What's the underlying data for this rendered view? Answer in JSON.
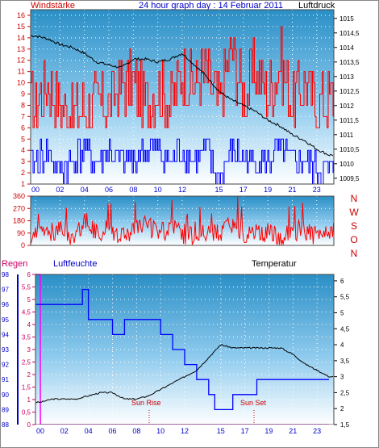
{
  "header": {
    "left_label": "Windstärke",
    "title": "24 hour graph day : 14 Februar 2011",
    "right_label": "Luftdruck"
  },
  "compass": [
    "N",
    "W",
    "S",
    "O",
    "N"
  ],
  "bottom_labels": {
    "rain": "Regen",
    "humidity": "Luftfeuchte",
    "temperature": "Temperatur",
    "sun_rise": "Sun Rise",
    "sun_set": "Sun Set"
  },
  "colors": {
    "wind": "#ff0000",
    "gust": "#0000ff",
    "pressure": "#000000",
    "direction": "#ff0000",
    "rain": "#ff00ff",
    "humidity": "#0000ff",
    "temperature": "#000000",
    "axis_left_top": "#cc0000",
    "axis_left_bottom": "#0000cc"
  },
  "chart_data": [
    {
      "type": "line",
      "name": "wind-pressure",
      "x_ticks": [
        "00",
        "02",
        "04",
        "06",
        "08",
        "10",
        "12",
        "15",
        "17",
        "19",
        "21",
        "23"
      ],
      "y_left": {
        "label": "Windstärke",
        "ticks": [
          "1",
          "2",
          "3",
          "4",
          "5",
          "6",
          "7",
          "8",
          "9",
          "10",
          "11",
          "12",
          "13",
          "14",
          "15",
          "16"
        ],
        "range": [
          1,
          16.5
        ]
      },
      "y_right": {
        "label": "Luftdruck",
        "ticks": [
          "1009,5",
          "1010",
          "1010,5",
          "1011",
          "1011,5",
          "1012",
          "1012,5",
          "1013",
          "1013,5",
          "1014",
          "1014,5",
          "1015"
        ],
        "range": [
          1009.3,
          1015.3
        ]
      },
      "series": [
        {
          "name": "Windstärke",
          "axis": "left",
          "x": [
            0,
            1,
            2,
            3,
            4,
            5,
            6,
            7,
            8,
            9,
            10,
            11,
            12,
            13,
            14,
            15,
            16,
            17,
            18,
            19,
            20,
            21,
            22,
            23,
            24
          ],
          "y": [
            8,
            10,
            8,
            7,
            8,
            8,
            8,
            10,
            10,
            8,
            10,
            8,
            11,
            10,
            11,
            8,
            13,
            9,
            11,
            9,
            12,
            8,
            10,
            8,
            9
          ]
        },
        {
          "name": "Böen",
          "axis": "left",
          "x": [
            0,
            1,
            2,
            3,
            4,
            5,
            6,
            7,
            8,
            9,
            10,
            11,
            12,
            13,
            14,
            15,
            16,
            17,
            18,
            19,
            20,
            21,
            22,
            23,
            24
          ],
          "y": [
            3,
            4,
            2,
            3,
            4,
            3,
            4,
            3,
            3,
            4,
            4,
            3,
            4,
            3,
            4,
            1,
            4,
            3,
            3,
            3,
            4,
            3,
            3,
            2,
            2
          ]
        },
        {
          "name": "Luftdruck",
          "axis": "right",
          "x": [
            0,
            1,
            2,
            3,
            4,
            5,
            6,
            7,
            8,
            9,
            10,
            11,
            12,
            13,
            14,
            15,
            16,
            17,
            18,
            19,
            20,
            21,
            22,
            23,
            24
          ],
          "y": [
            1014.4,
            1014.3,
            1014.1,
            1014.0,
            1013.8,
            1013.5,
            1013.4,
            1013.3,
            1013.6,
            1013.6,
            1013.5,
            1013.6,
            1013.8,
            1013.4,
            1013.0,
            1012.5,
            1012.2,
            1012.0,
            1011.8,
            1011.5,
            1011.3,
            1011.0,
            1010.8,
            1010.5,
            1010.3
          ]
        }
      ]
    },
    {
      "type": "line",
      "name": "direction",
      "x_ticks": [
        "00",
        "02",
        "04",
        "06",
        "08",
        "10",
        "12",
        "15",
        "17",
        "19",
        "21",
        "23"
      ],
      "y_left": {
        "ticks": [
          "0",
          "90",
          "180",
          "270",
          "360"
        ],
        "range": [
          0,
          360
        ]
      },
      "series": [
        {
          "name": "Windrichtung",
          "x": [
            0,
            1,
            2,
            3,
            4,
            5,
            6,
            7,
            8,
            9,
            10,
            11,
            12,
            13,
            14,
            15,
            16,
            17,
            18,
            19,
            20,
            21,
            22,
            23,
            24
          ],
          "y": [
            60,
            90,
            120,
            60,
            180,
            90,
            120,
            60,
            90,
            150,
            90,
            120,
            90,
            60,
            100,
            90,
            140,
            90,
            120,
            90,
            60,
            110,
            90,
            70,
            100
          ]
        }
      ]
    },
    {
      "type": "line",
      "name": "humidity-temperature",
      "x_ticks": [
        "00",
        "02",
        "04",
        "06",
        "08",
        "10",
        "12",
        "15",
        "17",
        "19",
        "21",
        "23"
      ],
      "y_left_outer": {
        "label": "Regen",
        "ticks": [
          "0",
          "0,5",
          "1",
          "1,5",
          "2",
          "2,5",
          "3",
          "3,5",
          "4",
          "4,5",
          "5",
          "5,5",
          "6"
        ],
        "range": [
          0,
          6
        ]
      },
      "y_left_inner": {
        "label": "Luftfeuchte",
        "ticks": [
          "88",
          "89",
          "90",
          "91",
          "92",
          "93",
          "94",
          "95",
          "96",
          "97",
          "98"
        ],
        "range": [
          88,
          98
        ]
      },
      "y_right": {
        "label": "Temperatur",
        "ticks": [
          "1,5",
          "2",
          "2,5",
          "3",
          "3,5",
          "4",
          "4,5",
          "5",
          "5,5",
          "6"
        ],
        "range": [
          1.5,
          6.2
        ]
      },
      "series": [
        {
          "name": "Regen",
          "axis": "outer",
          "x": [
            -0.4,
            0,
            0.01,
            24
          ],
          "y": [
            6,
            6,
            0,
            0
          ]
        },
        {
          "name": "Luftfeuchte",
          "axis": "inner",
          "x": [
            -0.4,
            0,
            1,
            2,
            3,
            3.5,
            4,
            5,
            6,
            7,
            8,
            9,
            10,
            11,
            12,
            13,
            14,
            14.5,
            15,
            16,
            17,
            18,
            19,
            20,
            21,
            22,
            23,
            24
          ],
          "y": [
            96,
            96,
            96,
            96,
            96,
            97,
            95,
            95,
            94,
            95,
            95,
            95,
            94,
            93,
            92,
            91,
            90,
            89,
            89,
            90,
            90,
            91,
            91,
            91,
            91,
            91,
            91,
            91
          ]
        },
        {
          "name": "Temperatur",
          "axis": "right",
          "x": [
            -0.4,
            0,
            1,
            2,
            3,
            4,
            5,
            6,
            7,
            8,
            9,
            10,
            11,
            12,
            13,
            14,
            15,
            16,
            17,
            18,
            19,
            20,
            21,
            22,
            23,
            24
          ],
          "y": [
            2.2,
            2.2,
            2.3,
            2.3,
            2.3,
            2.4,
            2.5,
            2.5,
            2.3,
            2.3,
            2.4,
            2.6,
            2.8,
            3.0,
            3.2,
            3.6,
            4.0,
            3.9,
            3.9,
            3.9,
            3.9,
            3.9,
            3.7,
            3.4,
            3.2,
            3.0
          ]
        }
      ]
    }
  ]
}
